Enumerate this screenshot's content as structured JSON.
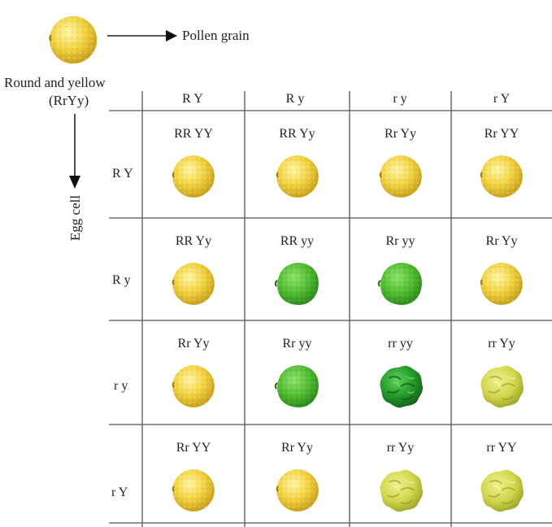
{
  "legend": {
    "seed_type": "round-yellow",
    "pollen_label": "Pollen grain",
    "parent_label_line1": "Round and yellow",
    "parent_label_line2": "(RrYy)",
    "egg_label": "Egg cell"
  },
  "columns": [
    "R Y",
    "R y",
    "r y",
    "r Y"
  ],
  "rows": [
    {
      "label": "R Y",
      "cells": [
        {
          "genotype": "RR YY",
          "seed": "round-yellow"
        },
        {
          "genotype": "RR Yy",
          "seed": "round-yellow"
        },
        {
          "genotype": "Rr Yy",
          "seed": "round-yellow"
        },
        {
          "genotype": "Rr YY",
          "seed": "round-yellow"
        }
      ]
    },
    {
      "label": "R y",
      "cells": [
        {
          "genotype": "RR Yy",
          "seed": "round-yellow"
        },
        {
          "genotype": "RR yy",
          "seed": "round-green"
        },
        {
          "genotype": "Rr yy",
          "seed": "round-green"
        },
        {
          "genotype": "Rr Yy",
          "seed": "round-yellow"
        }
      ]
    },
    {
      "label": "r y",
      "cells": [
        {
          "genotype": "Rr Yy",
          "seed": "round-yellow"
        },
        {
          "genotype": "Rr yy",
          "seed": "round-green"
        },
        {
          "genotype": "rr yy",
          "seed": "wrinkled-green"
        },
        {
          "genotype": "rr Yy",
          "seed": "wrinkled-yellow"
        }
      ]
    },
    {
      "label": "r Y",
      "cells": [
        {
          "genotype": "Rr YY",
          "seed": "round-yellow"
        },
        {
          "genotype": "Rr Yy",
          "seed": "round-yellow"
        },
        {
          "genotype": "rr Yy",
          "seed": "wrinkled-yellow"
        },
        {
          "genotype": "rr YY",
          "seed": "wrinkled-yellow"
        }
      ]
    }
  ],
  "colors": {
    "round_yellow": "#f3d64a",
    "round_green": "#5cc43a",
    "wrinkled_green": "#2fa02a",
    "wrinkled_yellow": "#d7dc5a",
    "grid": "#555555"
  }
}
